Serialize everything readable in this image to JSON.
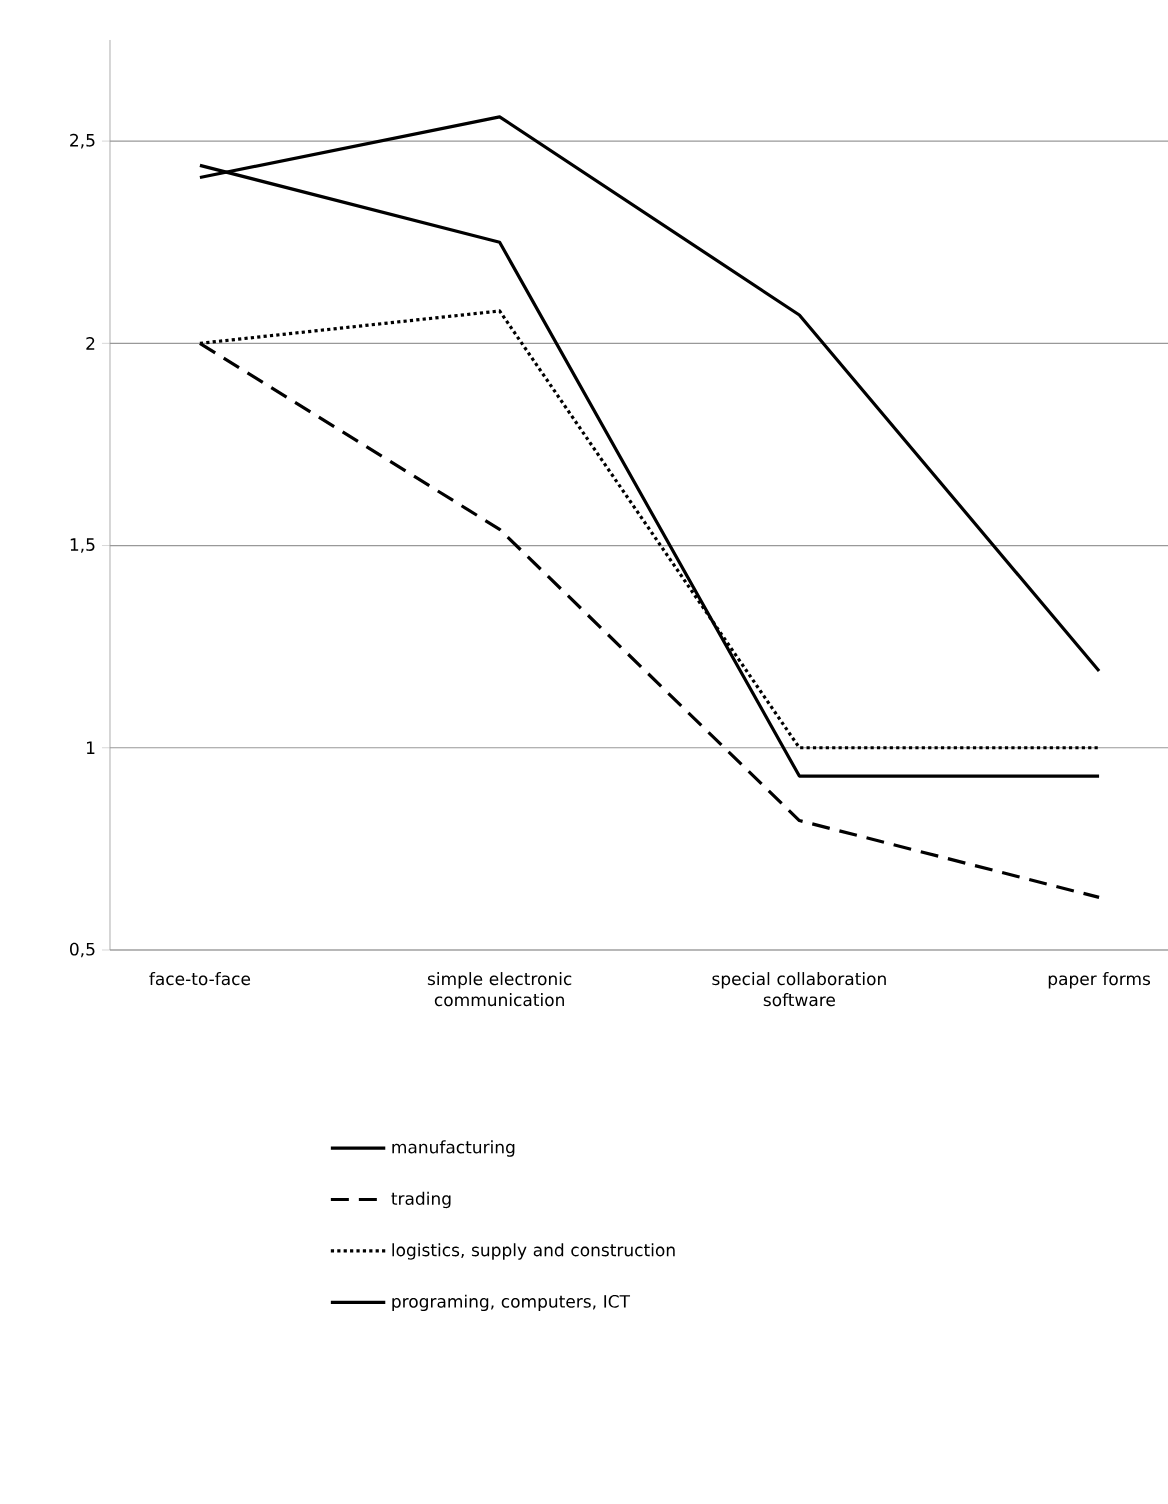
{
  "chart_data": {
    "type": "line",
    "categories": [
      "face-to-face",
      "simple electronic communication",
      "special collaboration software",
      "paper forms"
    ],
    "series": [
      {
        "name": "manufacturing",
        "color": "#000000",
        "line_style": "solid",
        "values": [
          2.41,
          2.56,
          2.07,
          1.19
        ]
      },
      {
        "name": "trading",
        "color": "#000000",
        "line_style": "dashed",
        "values": [
          2.0,
          1.54,
          0.82,
          0.63
        ]
      },
      {
        "name": "logistics, supply and construction",
        "color": "#000000",
        "line_style": "dotted",
        "values": [
          2.0,
          2.08,
          1.0,
          1.0
        ]
      },
      {
        "name": "programing, computers, ICT",
        "color": "#000000",
        "line_style": "solid",
        "values": [
          2.44,
          2.25,
          0.93,
          0.93
        ]
      }
    ],
    "ylim": [
      0.5,
      2.75
    ],
    "yticks": [
      {
        "value": 0.5,
        "label": "0,5"
      },
      1,
      {
        "value": 1.5,
        "label": "1,5"
      },
      2,
      {
        "value": 2.5,
        "label": "2,5"
      }
    ],
    "grid": "y",
    "legend": "bottom",
    "marker": "none"
  }
}
